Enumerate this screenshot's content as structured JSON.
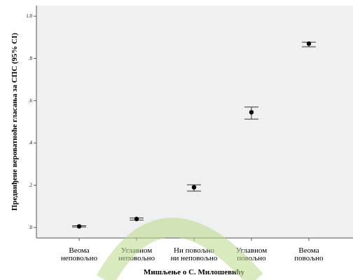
{
  "chart_data": {
    "type": "errorbar",
    "y_label": "Предвиђене вероватноће гласања за СПС (95% CI)",
    "x_label": "Мишљење о С. Милошевићу",
    "categories": [
      [
        "Веома",
        "неповољно"
      ],
      [
        "Углавном",
        "неповољно"
      ],
      [
        "Ни повољно",
        "ни неповољно"
      ],
      [
        "Углавном",
        "повољно"
      ],
      [
        "Веома",
        "повољно"
      ]
    ],
    "values": [
      0.005,
      0.04,
      0.19,
      0.545,
      0.87
    ],
    "lower": [
      0.002,
      0.035,
      0.172,
      0.513,
      0.855
    ],
    "upper": [
      0.008,
      0.045,
      0.202,
      0.57,
      0.877
    ],
    "color": "#000000",
    "ylim": [
      -0.05,
      1.05
    ],
    "yticks": [
      {
        "value": 0,
        "label": ".0"
      },
      {
        "value": 0.2,
        "label": ".2"
      },
      {
        "value": 0.4,
        "label": ".4"
      },
      {
        "value": 0.6,
        "label": ".6"
      },
      {
        "value": 0.8,
        "label": ".8"
      },
      {
        "value": 1.0,
        "label": "1.0"
      }
    ]
  }
}
